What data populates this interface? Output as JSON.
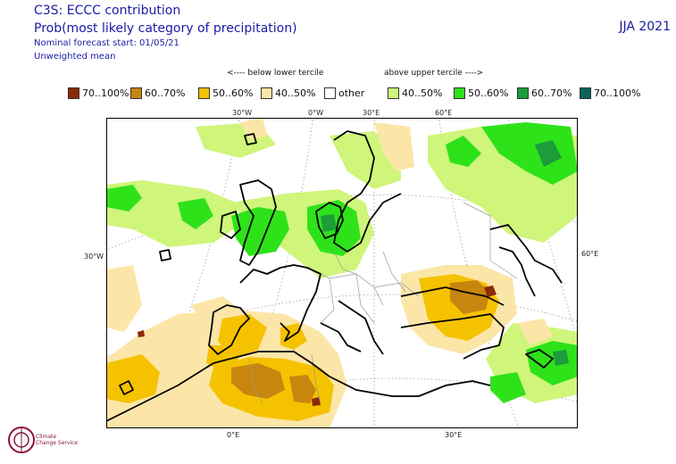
{
  "header": {
    "title": "C3S: ECCC contribution",
    "subtitle": "Prob(most likely category of precipitation)",
    "forecast_start": "Nominal forecast start: 01/05/21",
    "mean_type": "Unweighted mean",
    "season": "JJA 2021"
  },
  "tercile_labels": {
    "below": "<---- below lower tercile",
    "above": "above upper tercile ---->"
  },
  "legend": [
    {
      "label": "70..100%",
      "color": "#8b2a05"
    },
    {
      "label": "60..70%",
      "color": "#c8860e"
    },
    {
      "label": "50..60%",
      "color": "#f5c200"
    },
    {
      "label": "40..50%",
      "color": "#fbe6a8"
    },
    {
      "label": "other",
      "color": "#ffffff"
    },
    {
      "label": "40..50%",
      "color": "#cff57a"
    },
    {
      "label": "50..60%",
      "color": "#2ee21a"
    },
    {
      "label": "60..70%",
      "color": "#1c9c3a"
    },
    {
      "label": "70..100%",
      "color": "#07655a"
    }
  ],
  "coords": {
    "top": [
      "30°W",
      "0°W",
      "30°E",
      "60°E"
    ],
    "left": "30°W",
    "right": "60°E",
    "bottom": [
      "0°E",
      "30°E"
    ]
  },
  "logo": {
    "line1": "Climate",
    "line2": "Change Service"
  }
}
